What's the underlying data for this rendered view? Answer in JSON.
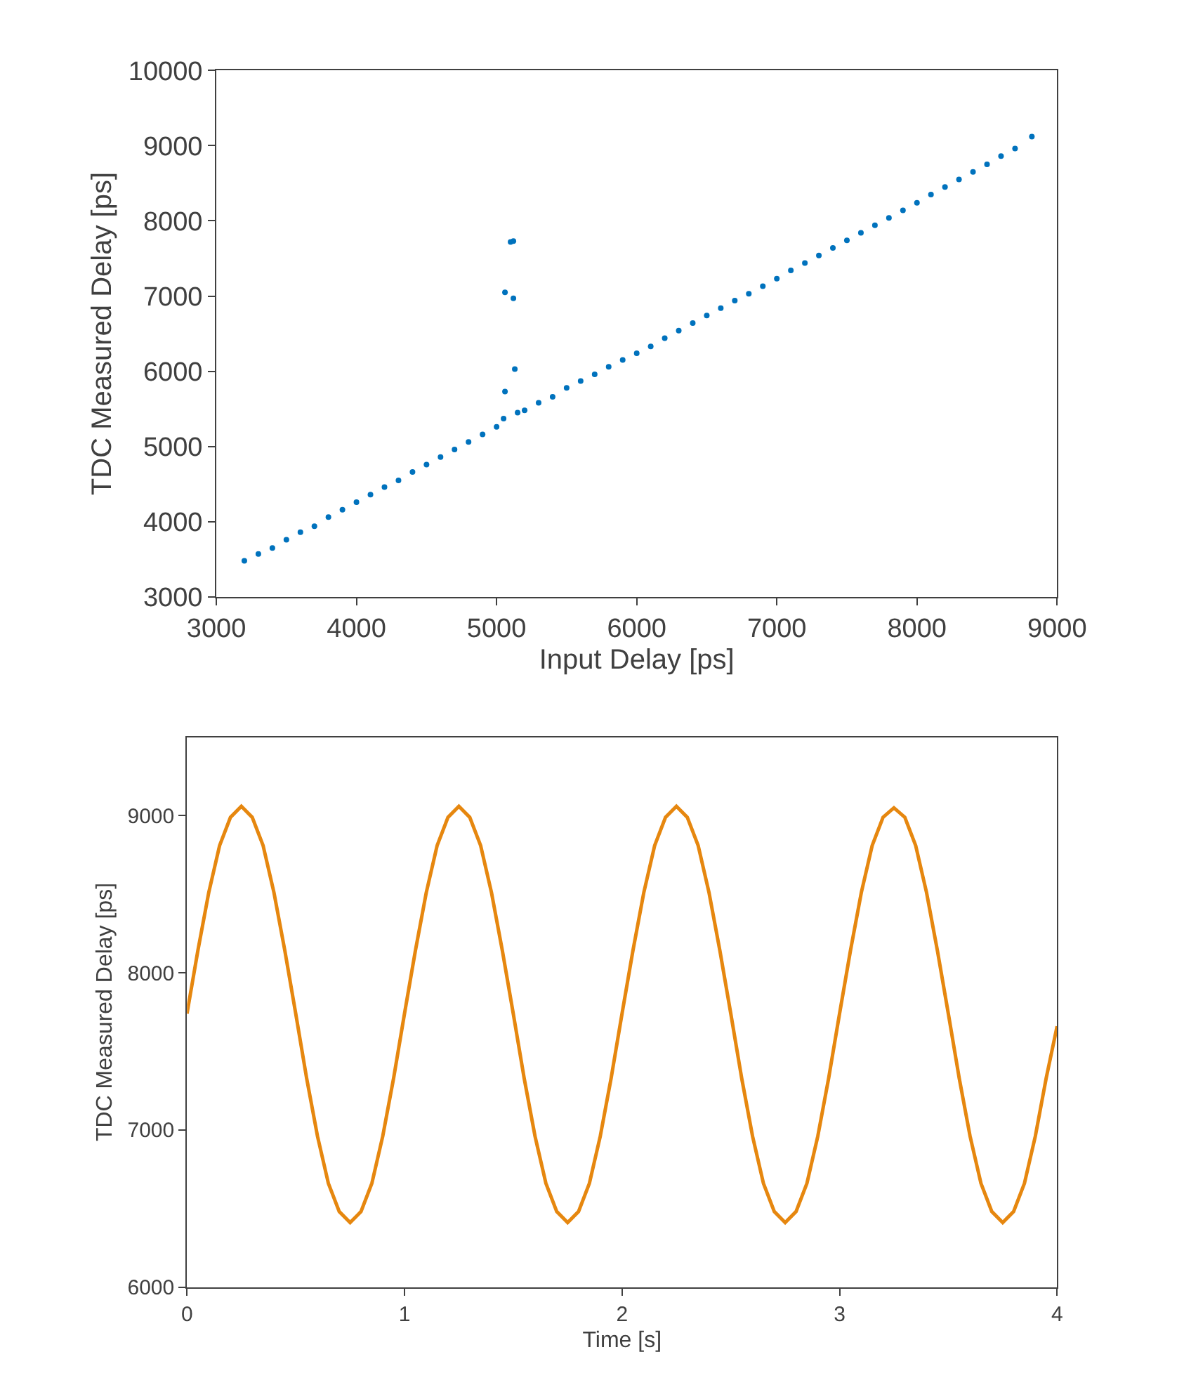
{
  "chart_data": [
    {
      "type": "scatter",
      "xlabel": "Input Delay [ps]",
      "ylabel": "TDC Measured Delay [ps]",
      "xlim": [
        3000,
        9000
      ],
      "ylim": [
        3000,
        10000
      ],
      "xticks": [
        3000,
        4000,
        5000,
        6000,
        7000,
        8000,
        9000
      ],
      "yticks": [
        3000,
        4000,
        5000,
        6000,
        7000,
        8000,
        9000,
        10000
      ],
      "marker": "circle",
      "series": [
        {
          "color": "#0072bd",
          "x": [
            3200,
            3300,
            3400,
            3500,
            3600,
            3700,
            3800,
            3900,
            4000,
            4100,
            4200,
            4300,
            4400,
            4500,
            4600,
            4700,
            4800,
            4900,
            5000,
            5050,
            5060,
            5060,
            5100,
            5120,
            5120,
            5130,
            5150,
            5200,
            5300,
            5400,
            5500,
            5600,
            5700,
            5800,
            5900,
            6000,
            6100,
            6200,
            6300,
            6400,
            6500,
            6600,
            6700,
            6800,
            6900,
            7000,
            7100,
            7200,
            7300,
            7400,
            7500,
            7600,
            7700,
            7800,
            7900,
            8000,
            8100,
            8200,
            8300,
            8400,
            8500,
            8600,
            8700,
            8820
          ],
          "values": [
            3480,
            3570,
            3650,
            3760,
            3860,
            3940,
            4060,
            4160,
            4260,
            4360,
            4460,
            4550,
            4660,
            4760,
            4860,
            4960,
            5060,
            5160,
            5260,
            5370,
            5730,
            7050,
            7720,
            7730,
            6970,
            6030,
            5450,
            5480,
            5580,
            5660,
            5780,
            5870,
            5960,
            6060,
            6150,
            6240,
            6330,
            6440,
            6540,
            6640,
            6740,
            6840,
            6940,
            7030,
            7130,
            7230,
            7340,
            7440,
            7540,
            7640,
            7740,
            7840,
            7940,
            8040,
            8140,
            8240,
            8350,
            8450,
            8550,
            8650,
            8750,
            8860,
            8960,
            9120
          ]
        }
      ]
    },
    {
      "type": "line",
      "xlabel": "Time [s]",
      "ylabel": "TDC Measured Delay [ps]",
      "xlim": [
        0,
        4
      ],
      "ylim": [
        6000,
        9500
      ],
      "xticks": [
        0,
        1,
        2,
        3,
        4
      ],
      "yticks": [
        6000,
        7000,
        8000,
        9000
      ],
      "marker": "none",
      "line_style": "solid",
      "series": [
        {
          "color": "#e6870f",
          "x": [
            0,
            0.05,
            0.1,
            0.15,
            0.2,
            0.25,
            0.3,
            0.35,
            0.4,
            0.45,
            0.5,
            0.55,
            0.6,
            0.65,
            0.7,
            0.75,
            0.8,
            0.85,
            0.9,
            0.95,
            1,
            1.05,
            1.1,
            1.15,
            1.2,
            1.25,
            1.3,
            1.35,
            1.4,
            1.45,
            1.5,
            1.55,
            1.6,
            1.65,
            1.7,
            1.75,
            1.8,
            1.85,
            1.9,
            1.95,
            2,
            2.05,
            2.1,
            2.15,
            2.2,
            2.25,
            2.3,
            2.35,
            2.4,
            2.45,
            2.5,
            2.55,
            2.6,
            2.65,
            2.7,
            2.75,
            2.8,
            2.85,
            2.9,
            2.95,
            3,
            3.05,
            3.1,
            3.15,
            3.2,
            3.25,
            3.3,
            3.35,
            3.4,
            3.45,
            3.5,
            3.55,
            3.6,
            3.65,
            3.7,
            3.75,
            3.8,
            3.85,
            3.9,
            3.95,
            4
          ],
          "values": [
            7740,
            8140,
            8510,
            8810,
            8990,
            9060,
            8990,
            8810,
            8510,
            8140,
            7740,
            7330,
            6960,
            6660,
            6480,
            6410,
            6480,
            6660,
            6960,
            7330,
            7740,
            8140,
            8510,
            8810,
            8990,
            9060,
            8990,
            8810,
            8510,
            8140,
            7740,
            7330,
            6960,
            6660,
            6480,
            6410,
            6480,
            6660,
            6960,
            7330,
            7740,
            8140,
            8510,
            8810,
            8990,
            9060,
            8990,
            8810,
            8510,
            8140,
            7740,
            7330,
            6960,
            6660,
            6480,
            6410,
            6480,
            6660,
            6960,
            7330,
            7740,
            8140,
            8510,
            8810,
            8990,
            9050,
            8990,
            8810,
            8510,
            8140,
            7740,
            7330,
            6960,
            6660,
            6480,
            6410,
            6480,
            6660,
            6960,
            7330,
            7660
          ]
        }
      ]
    }
  ]
}
